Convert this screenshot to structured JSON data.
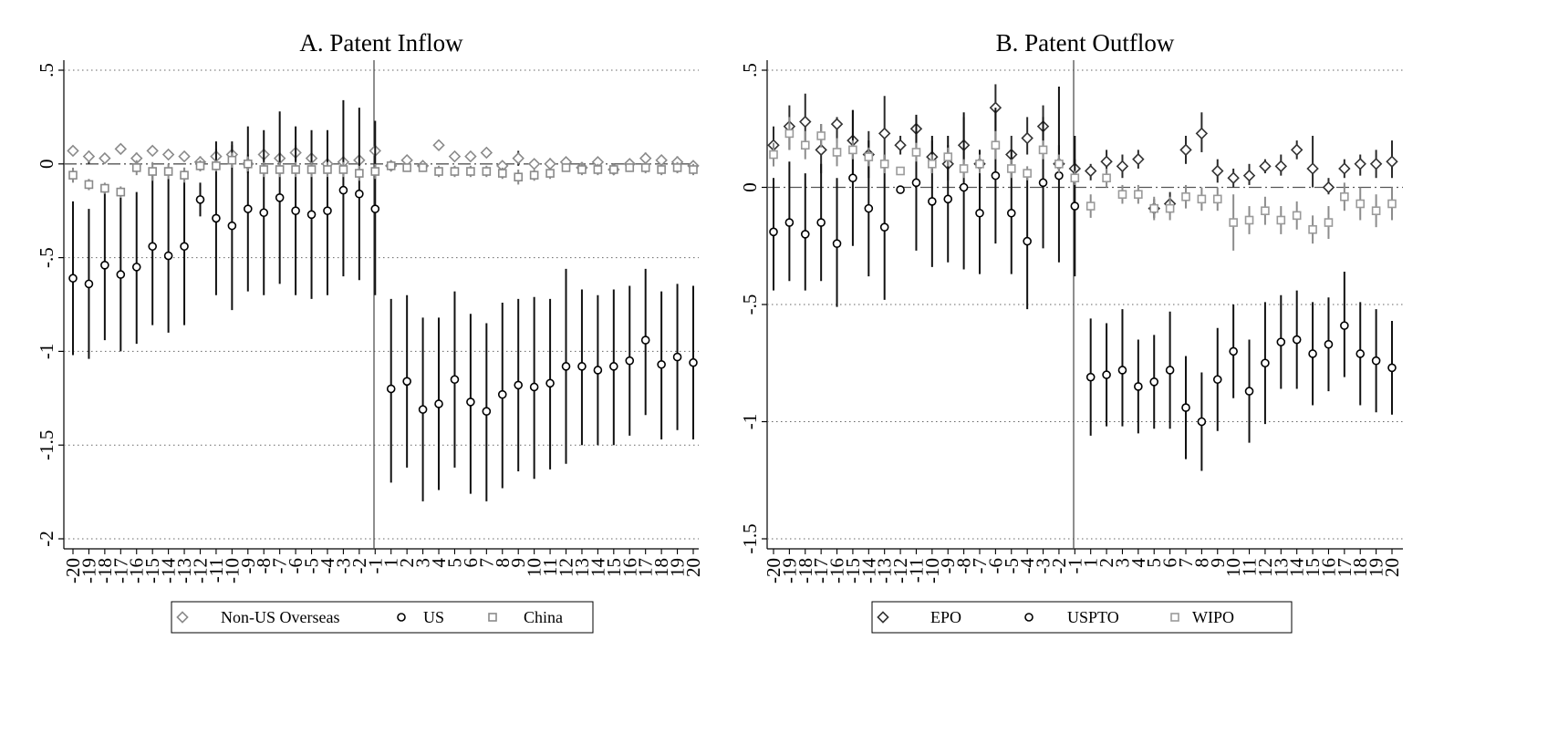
{
  "chart_data": [
    {
      "type": "scatter",
      "title": "A. Patent Inflow",
      "xlabel": "",
      "ylabel": "",
      "categories": [
        "-20",
        "-19",
        "-18",
        "-17",
        "-16",
        "-15",
        "-14",
        "-13",
        "-12",
        "-11",
        "-10",
        "-9",
        "-8",
        "-7",
        "-6",
        "-5",
        "-4",
        "-3",
        "-2",
        "-1",
        "1",
        "2",
        "3",
        "4",
        "5",
        "6",
        "7",
        "8",
        "9",
        "10",
        "11",
        "12",
        "13",
        "14",
        "15",
        "16",
        "17",
        "18",
        "19",
        "20"
      ],
      "ylim": [
        -2,
        0.5
      ],
      "yticks": [
        0.5,
        0,
        -0.5,
        -1,
        -1.5,
        -2
      ],
      "ytick_labels": [
        ".5",
        "0",
        "-.5",
        "-1",
        "-1.5",
        "-2"
      ],
      "reference_line": 0,
      "event_line_after": "-1",
      "grid": "horizontal dotted",
      "legend_position": "bottom",
      "series": [
        {
          "name": "Non-US Overseas",
          "marker": "diamond",
          "color": "#8a8a8a",
          "values": [
            0.07,
            0.04,
            0.03,
            0.08,
            0.03,
            0.07,
            0.05,
            0.04,
            0.01,
            0.04,
            0.05,
            0.0,
            0.05,
            0.03,
            0.06,
            0.03,
            0.0,
            0.01,
            0.02,
            0.07,
            -0.01,
            0.02,
            -0.01,
            0.1,
            0.04,
            0.04,
            0.06,
            -0.01,
            0.03,
            0.0,
            0.0,
            0.01,
            -0.02,
            0.01,
            -0.03,
            0.0,
            0.03,
            0.02,
            0.01,
            -0.01
          ],
          "lower": [
            0.07,
            0.0,
            0.03,
            0.08,
            0.0,
            0.07,
            0.05,
            0.04,
            -0.03,
            0.0,
            0.0,
            -0.05,
            0.05,
            0.0,
            0.02,
            0.0,
            -0.03,
            -0.02,
            0.0,
            0.07,
            -0.01,
            0.02,
            -0.01,
            0.1,
            0.04,
            0.04,
            0.06,
            -0.01,
            -0.01,
            0.0,
            -0.03,
            0.01,
            -0.02,
            0.01,
            -0.03,
            -0.02,
            0.0,
            0.02,
            -0.02,
            -0.03
          ],
          "upper": [
            0.07,
            0.07,
            0.03,
            0.08,
            0.06,
            0.07,
            0.05,
            0.04,
            0.04,
            0.08,
            0.1,
            0.05,
            0.05,
            0.06,
            0.1,
            0.06,
            0.03,
            0.04,
            0.04,
            0.07,
            -0.01,
            0.02,
            -0.01,
            0.1,
            0.04,
            0.04,
            0.06,
            -0.01,
            0.07,
            0.0,
            0.03,
            0.01,
            -0.02,
            0.01,
            -0.03,
            0.02,
            0.06,
            0.02,
            0.04,
            0.01
          ]
        },
        {
          "name": "US",
          "marker": "circle",
          "color": "#000000",
          "values": [
            -0.61,
            -0.64,
            -0.54,
            -0.59,
            -0.55,
            -0.44,
            -0.49,
            -0.44,
            -0.19,
            -0.29,
            -0.33,
            -0.24,
            -0.26,
            -0.18,
            -0.25,
            -0.27,
            -0.25,
            -0.14,
            -0.16,
            -0.24,
            -1.2,
            -1.16,
            -1.31,
            -1.28,
            -1.15,
            -1.27,
            -1.32,
            -1.23,
            -1.18,
            -1.19,
            -1.17,
            -1.08,
            -1.08,
            -1.1,
            -1.08,
            -1.05,
            -0.94,
            -1.07,
            -1.03,
            -1.06
          ],
          "lower": [
            -1.02,
            -1.04,
            -0.94,
            -1.0,
            -0.96,
            -0.86,
            -0.9,
            -0.86,
            -0.28,
            -0.7,
            -0.78,
            -0.68,
            -0.7,
            -0.64,
            -0.7,
            -0.72,
            -0.7,
            -0.6,
            -0.62,
            -0.7,
            -1.7,
            -1.62,
            -1.8,
            -1.74,
            -1.62,
            -1.76,
            -1.8,
            -1.73,
            -1.64,
            -1.68,
            -1.63,
            -1.6,
            -1.5,
            -1.5,
            -1.5,
            -1.45,
            -1.34,
            -1.47,
            -1.42,
            -1.47
          ],
          "upper": [
            -0.2,
            -0.24,
            -0.14,
            -0.18,
            -0.15,
            -0.02,
            -0.08,
            -0.02,
            -0.1,
            0.12,
            0.12,
            0.2,
            0.18,
            0.28,
            0.2,
            0.18,
            0.18,
            0.34,
            0.3,
            0.23,
            -0.72,
            -0.7,
            -0.82,
            -0.82,
            -0.68,
            -0.8,
            -0.85,
            -0.74,
            -0.72,
            -0.71,
            -0.72,
            -0.56,
            -0.67,
            -0.7,
            -0.67,
            -0.65,
            -0.56,
            -0.68,
            -0.64,
            -0.65
          ]
        },
        {
          "name": "China",
          "marker": "square",
          "color": "#8a8a8a",
          "values": [
            -0.06,
            -0.11,
            -0.13,
            -0.15,
            -0.02,
            -0.04,
            -0.04,
            -0.06,
            -0.01,
            -0.01,
            0.02,
            0.0,
            -0.03,
            -0.03,
            -0.03,
            -0.03,
            -0.03,
            -0.03,
            -0.05,
            -0.04,
            -0.01,
            -0.02,
            -0.02,
            -0.04,
            -0.04,
            -0.04,
            -0.04,
            -0.05,
            -0.07,
            -0.06,
            -0.05,
            -0.02,
            -0.03,
            -0.03,
            -0.03,
            -0.02,
            -0.02,
            -0.03,
            -0.02,
            -0.03
          ],
          "lower": [
            -0.1,
            -0.14,
            -0.16,
            -0.18,
            -0.06,
            -0.09,
            -0.08,
            -0.1,
            -0.04,
            -0.04,
            -0.02,
            -0.04,
            -0.07,
            -0.07,
            -0.07,
            -0.07,
            -0.07,
            -0.07,
            -0.09,
            -0.08,
            -0.03,
            -0.04,
            -0.04,
            -0.07,
            -0.07,
            -0.07,
            -0.07,
            -0.08,
            -0.11,
            -0.09,
            -0.08,
            -0.04,
            -0.06,
            -0.06,
            -0.05,
            -0.04,
            -0.05,
            -0.06,
            -0.05,
            -0.06
          ],
          "upper": [
            -0.02,
            -0.08,
            -0.1,
            -0.12,
            0.02,
            0.01,
            0.0,
            -0.02,
            0.02,
            0.02,
            0.06,
            0.04,
            0.01,
            0.01,
            0.01,
            0.01,
            0.01,
            0.01,
            -0.01,
            0.0,
            0.01,
            0.0,
            0.0,
            -0.01,
            -0.01,
            -0.01,
            -0.01,
            -0.02,
            -0.03,
            -0.03,
            -0.02,
            0.0,
            0.0,
            0.0,
            -0.01,
            0.0,
            0.01,
            0.0,
            0.01,
            0.0
          ]
        }
      ]
    },
    {
      "type": "scatter",
      "title": "B. Patent Outflow",
      "xlabel": "",
      "ylabel": "",
      "categories": [
        "-20",
        "-19",
        "-18",
        "-17",
        "-16",
        "-15",
        "-14",
        "-13",
        "-12",
        "-11",
        "-10",
        "-9",
        "-8",
        "-7",
        "-6",
        "-5",
        "-4",
        "-3",
        "-2",
        "-1",
        "1",
        "2",
        "3",
        "4",
        "5",
        "6",
        "7",
        "8",
        "9",
        "10",
        "11",
        "12",
        "13",
        "14",
        "15",
        "16",
        "17",
        "18",
        "19",
        "20"
      ],
      "ylim": [
        -1.5,
        0.5
      ],
      "yticks": [
        0.5,
        0,
        -0.5,
        -1,
        -1.5
      ],
      "ytick_labels": [
        ".5",
        "0",
        "-.5",
        "-1",
        "-1.5"
      ],
      "reference_line": 0,
      "event_line_after": "-1",
      "grid": "horizontal dotted",
      "legend_position": "bottom",
      "series": [
        {
          "name": "EPO",
          "marker": "diamond",
          "color": "#333333",
          "values": [
            0.18,
            0.26,
            0.28,
            0.16,
            0.27,
            0.2,
            0.14,
            0.23,
            0.18,
            0.25,
            0.13,
            0.1,
            0.18,
            0.1,
            0.34,
            0.14,
            0.21,
            0.26,
            0.1,
            0.08,
            0.07,
            0.11,
            0.09,
            0.12,
            -0.09,
            -0.07,
            0.16,
            0.23,
            0.07,
            0.04,
            0.05,
            0.09,
            0.09,
            0.16,
            0.08,
            0.0,
            0.08,
            0.1,
            0.1,
            0.11
          ],
          "lower": [
            0.09,
            0.16,
            0.17,
            0.06,
            0.19,
            0.06,
            0.04,
            0.08,
            0.14,
            0.15,
            0.06,
            0.03,
            0.11,
            0.04,
            0.24,
            0.07,
            0.14,
            0.18,
            0.03,
            0.04,
            0.03,
            0.05,
            0.04,
            0.08,
            -0.13,
            -0.11,
            0.1,
            0.15,
            0.02,
            0.0,
            0.01,
            0.06,
            0.05,
            0.12,
            0.0,
            -0.03,
            0.04,
            0.05,
            0.04,
            0.04
          ],
          "upper": [
            0.26,
            0.35,
            0.4,
            0.27,
            0.3,
            0.33,
            0.24,
            0.39,
            0.22,
            0.3,
            0.2,
            0.18,
            0.3,
            0.16,
            0.44,
            0.22,
            0.3,
            0.35,
            0.18,
            0.12,
            0.1,
            0.16,
            0.14,
            0.16,
            -0.05,
            -0.02,
            0.22,
            0.32,
            0.12,
            0.08,
            0.1,
            0.12,
            0.14,
            0.2,
            0.22,
            0.04,
            0.12,
            0.14,
            0.16,
            0.2
          ]
        },
        {
          "name": "USPTO",
          "marker": "circle",
          "color": "#000000",
          "values": [
            -0.19,
            -0.15,
            -0.2,
            -0.15,
            -0.24,
            0.04,
            -0.09,
            -0.17,
            -0.01,
            0.02,
            -0.06,
            -0.05,
            0.0,
            -0.11,
            0.05,
            -0.11,
            -0.23,
            0.02,
            0.05,
            -0.08,
            -0.81,
            -0.8,
            -0.78,
            -0.85,
            -0.83,
            -0.78,
            -0.94,
            -1.0,
            -0.82,
            -0.7,
            -0.87,
            -0.75,
            -0.66,
            -0.65,
            -0.71,
            -0.67,
            -0.59,
            -0.71,
            -0.74,
            -0.77
          ],
          "lower": [
            -0.44,
            -0.4,
            -0.44,
            -0.4,
            -0.51,
            -0.25,
            -0.38,
            -0.48,
            -0.01,
            -0.27,
            -0.34,
            -0.32,
            -0.35,
            -0.37,
            -0.24,
            -0.37,
            -0.52,
            -0.26,
            -0.32,
            -0.38,
            -1.06,
            -1.02,
            -1.02,
            -1.05,
            -1.03,
            -1.03,
            -1.16,
            -1.21,
            -1.04,
            -0.9,
            -1.09,
            -1.01,
            -0.86,
            -0.86,
            -0.93,
            -0.87,
            -0.81,
            -0.93,
            -0.96,
            -0.97
          ],
          "upper": [
            0.04,
            0.11,
            0.06,
            0.1,
            0.04,
            0.33,
            0.2,
            0.14,
            -0.01,
            0.31,
            0.22,
            0.22,
            0.32,
            0.16,
            0.34,
            0.16,
            0.06,
            0.3,
            0.43,
            0.22,
            -0.56,
            -0.58,
            -0.52,
            -0.65,
            -0.63,
            -0.53,
            -0.72,
            -0.79,
            -0.6,
            -0.5,
            -0.65,
            -0.49,
            -0.46,
            -0.44,
            -0.49,
            -0.47,
            -0.36,
            -0.49,
            -0.52,
            -0.57
          ]
        },
        {
          "name": "WIPO",
          "marker": "square",
          "color": "#9a9a9a",
          "values": [
            0.14,
            0.23,
            0.18,
            0.22,
            0.15,
            0.16,
            0.13,
            0.1,
            0.07,
            0.15,
            0.1,
            0.13,
            0.08,
            0.1,
            0.18,
            0.08,
            0.06,
            0.16,
            0.1,
            0.04,
            -0.08,
            0.04,
            -0.03,
            -0.03,
            -0.09,
            -0.09,
            -0.04,
            -0.05,
            -0.05,
            -0.15,
            -0.14,
            -0.1,
            -0.14,
            -0.12,
            -0.18,
            -0.15,
            -0.04,
            -0.07,
            -0.1,
            -0.07
          ],
          "lower": [
            0.09,
            0.16,
            0.12,
            0.17,
            0.09,
            0.12,
            0.09,
            0.06,
            0.07,
            0.11,
            0.06,
            0.09,
            0.04,
            0.06,
            0.12,
            0.04,
            0.03,
            0.12,
            0.06,
            0.01,
            -0.13,
            0.0,
            -0.07,
            -0.07,
            -0.14,
            -0.14,
            -0.09,
            -0.1,
            -0.1,
            -0.27,
            -0.2,
            -0.16,
            -0.2,
            -0.18,
            -0.24,
            -0.22,
            -0.1,
            -0.14,
            -0.17,
            -0.14
          ],
          "upper": [
            0.19,
            0.3,
            0.24,
            0.27,
            0.21,
            0.2,
            0.17,
            0.14,
            0.07,
            0.19,
            0.14,
            0.17,
            0.12,
            0.14,
            0.24,
            0.12,
            0.09,
            0.2,
            0.14,
            0.07,
            -0.03,
            0.08,
            0.01,
            0.01,
            -0.04,
            -0.04,
            0.01,
            0.0,
            0.0,
            -0.03,
            -0.08,
            -0.04,
            -0.08,
            -0.06,
            -0.12,
            -0.08,
            0.02,
            0.0,
            -0.03,
            0.0
          ]
        }
      ]
    }
  ]
}
